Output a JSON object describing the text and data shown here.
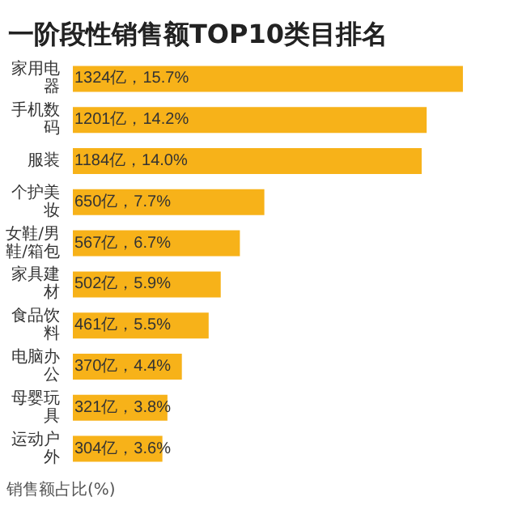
{
  "chart_data": {
    "type": "bar",
    "orientation": "horizontal",
    "title": "一阶段性销售额TOP10类目排名",
    "categories": [
      "家用电器",
      "手机数码",
      "服装",
      "个护美妆",
      "女鞋/男鞋/箱包",
      "家具建材",
      "食品饮料",
      "电脑办公",
      "母婴玩具",
      "运动户外"
    ],
    "values": [
      1324,
      1201,
      1184,
      650,
      567,
      502,
      461,
      370,
      321,
      304
    ],
    "value_labels": [
      "1324亿，15.7%",
      "1201亿，14.2%",
      "1184亿，14.0%",
      "650亿，7.7%",
      "567亿，6.7%",
      "502亿，5.9%",
      "461亿，5.5%",
      "370亿，4.4%",
      "321亿，3.8%",
      "304亿，3.6%"
    ],
    "color": "#f7b219",
    "annotations": [
      "销售额占比(%)"
    ]
  }
}
